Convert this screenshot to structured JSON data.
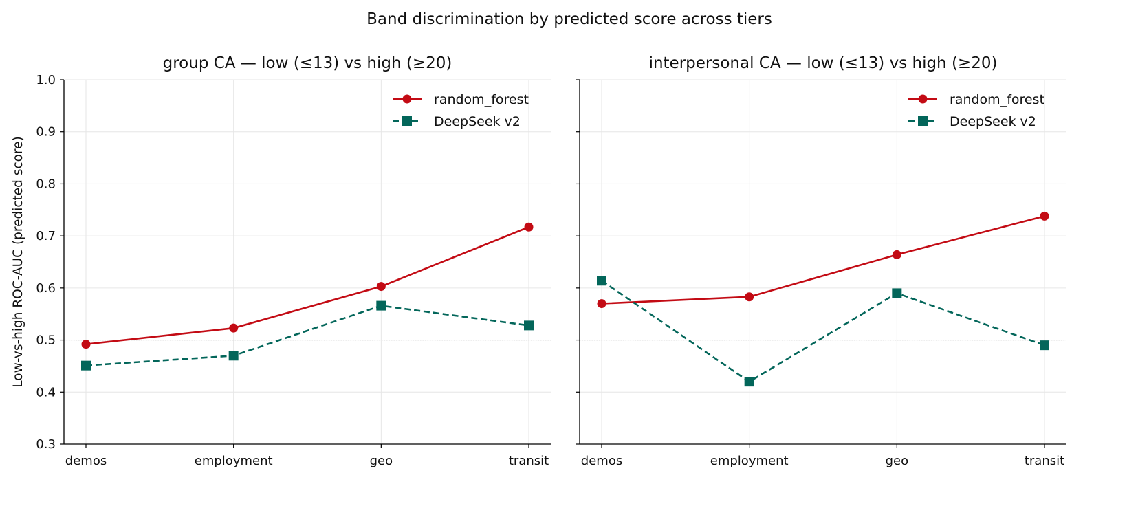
{
  "figure": {
    "title": "Band discrimination by predicted score across tiers"
  },
  "colors": {
    "random_forest": "#c30b14",
    "deepseek": "#03665a",
    "grid": "#e6e6e6",
    "axis": "#000000",
    "reference": "#8c8c8c"
  },
  "chart_data": [
    {
      "type": "line",
      "title": "group CA — low (≤13) vs high (≥20)",
      "xlabel": "",
      "ylabel": "Low-vs-high ROC-AUC (predicted score)",
      "categories": [
        "demos",
        "employment",
        "geo",
        "transit"
      ],
      "ylim": [
        0.3,
        1.0
      ],
      "yticks": [
        "0.3",
        "0.4",
        "0.5",
        "0.6",
        "0.7",
        "0.8",
        "0.9",
        "1.0"
      ],
      "reference_line": 0.5,
      "grid": true,
      "legend_position": "top-right",
      "series": [
        {
          "name": "random_forest",
          "values": [
            0.492,
            0.523,
            0.603,
            0.717
          ],
          "line_style": "solid",
          "marker": "circle",
          "color": "#c30b14"
        },
        {
          "name": "DeepSeek v2",
          "values": [
            0.451,
            0.47,
            0.566,
            0.528
          ],
          "line_style": "dashed",
          "marker": "square",
          "color": "#03665a"
        }
      ]
    },
    {
      "type": "line",
      "title": "interpersonal CA — low (≤13) vs high (≥20)",
      "xlabel": "",
      "ylabel": "",
      "categories": [
        "demos",
        "employment",
        "geo",
        "transit"
      ],
      "ylim": [
        0.3,
        1.0
      ],
      "yticks": [
        "",
        "",
        "",
        "",
        "",
        "",
        "",
        ""
      ],
      "reference_line": 0.5,
      "grid": true,
      "legend_position": "top-right",
      "series": [
        {
          "name": "random_forest",
          "values": [
            0.57,
            0.583,
            0.664,
            0.738
          ],
          "line_style": "solid",
          "marker": "circle",
          "color": "#c30b14"
        },
        {
          "name": "DeepSeek v2",
          "values": [
            0.614,
            0.42,
            0.59,
            0.49
          ],
          "line_style": "dashed",
          "marker": "square",
          "color": "#03665a"
        }
      ]
    }
  ]
}
